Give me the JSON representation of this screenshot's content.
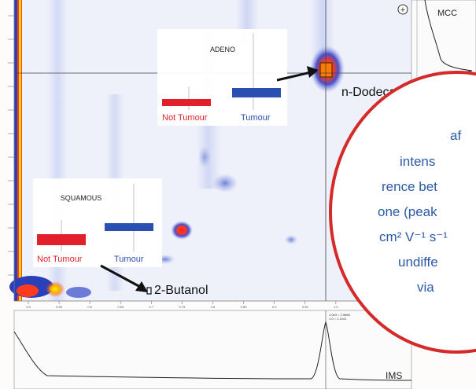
{
  "chart_data": {
    "type": "heatmap",
    "panels": {
      "main": {
        "label": "",
        "colors": {
          "peak": "#ff3b1f",
          "low": "#8fa2e6",
          "bg": "#f1f3fb"
        }
      },
      "right_trace": {
        "label": "MCC"
      },
      "bottom_trace": {
        "label": "IMS",
        "tick_hint_1": "1.0e3 = 2.5665",
        "tick_hint_2": "1.0 = 1.1041"
      }
    },
    "annotations": [
      {
        "label": "n-Dodecan",
        "x": 0.975,
        "y": 0.78
      },
      {
        "label": "2-Butanol",
        "x": 0.6,
        "y": 0.05
      }
    ],
    "insets": [
      {
        "title": "ADENO",
        "categories": [
          "Not Tumour",
          "Tumour"
        ],
        "colors": [
          "#e2202b",
          "#2a4fb0"
        ],
        "values": [
          0.45,
          0.62
        ]
      },
      {
        "title": "SQUAMOUS",
        "categories": [
          "Not Tumour",
          "Tumour"
        ],
        "colors": [
          "#e2202b",
          "#2a4fb0"
        ],
        "values": [
          0.4,
          0.55
        ]
      }
    ],
    "callout": {
      "border_color": "#d42a2a",
      "lines": [
        "af",
        "intens",
        "rence bet",
        "one (peak",
        "cm² V⁻¹ s⁻¹",
        "undiffe",
        "via"
      ]
    },
    "x_axis_ticks": [
      "0.5",
      "0.55",
      "0.6",
      "0.65",
      "0.7",
      "0.75",
      "0.8",
      "0.85",
      "0.9",
      "0.95",
      "1.0",
      "1.05",
      "1.1"
    ],
    "crosshair_readout": "+"
  }
}
